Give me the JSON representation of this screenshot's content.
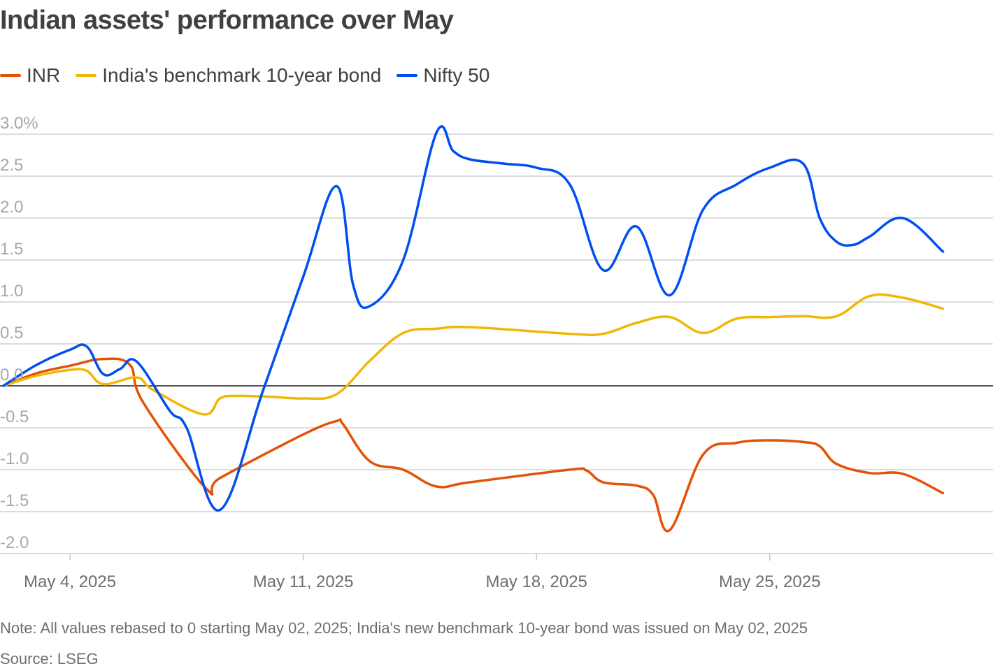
{
  "title": "Indian assets' performance over May",
  "note": "Note: All values rebased to 0 starting May 02, 2025; India's new benchmark 10-year bond was issued on May 02, 2025",
  "source": "Source: LSEG",
  "chart_data": {
    "type": "line",
    "title": "Indian assets' performance over May",
    "xlabel": "",
    "ylabel": "",
    "x_start": "2025-05-02",
    "x_range_days": [
      -0.1,
      29.7
    ],
    "ylim": [
      -2.0,
      3.0
    ],
    "grid": true,
    "legend_position": "top-left",
    "yticks": [
      {
        "value": 3.0,
        "label": "3.0%"
      },
      {
        "value": 2.5,
        "label": "2.5"
      },
      {
        "value": 2.0,
        "label": "2.0"
      },
      {
        "value": 1.5,
        "label": "1.5"
      },
      {
        "value": 1.0,
        "label": "1.0"
      },
      {
        "value": 0.5,
        "label": "0.5"
      },
      {
        "value": 0.0,
        "label": "0.0"
      },
      {
        "value": -0.5,
        "label": "-0.5"
      },
      {
        "value": -1.0,
        "label": "-1.0"
      },
      {
        "value": -1.5,
        "label": "-1.5"
      },
      {
        "value": -2.0,
        "label": "-2.0"
      }
    ],
    "xticks": [
      {
        "day": 2,
        "label": "May 4, 2025"
      },
      {
        "day": 9,
        "label": "May 11, 2025"
      },
      {
        "day": 16,
        "label": "May 18, 2025"
      },
      {
        "day": 23,
        "label": "May 25, 2025"
      }
    ],
    "series": [
      {
        "name": "INR",
        "color": "#e35205",
        "points": [
          [
            0,
            0
          ],
          [
            1,
            0.15
          ],
          [
            2,
            0.24
          ],
          [
            3,
            0.32
          ],
          [
            3.8,
            0.25
          ],
          [
            4.2,
            -0.2
          ],
          [
            6.1,
            -1.23
          ],
          [
            6.5,
            -1.1
          ],
          [
            9,
            -0.58
          ],
          [
            10,
            -0.42
          ],
          [
            10.2,
            -0.46
          ],
          [
            11,
            -0.9
          ],
          [
            12,
            -1.0
          ],
          [
            13,
            -1.2
          ],
          [
            14,
            -1.15
          ],
          [
            17,
            -1.0
          ],
          [
            17.5,
            -1.01
          ],
          [
            18,
            -1.15
          ],
          [
            19,
            -1.19
          ],
          [
            19.5,
            -1.3
          ],
          [
            20,
            -1.72
          ],
          [
            21,
            -0.82
          ],
          [
            22,
            -0.68
          ],
          [
            23,
            -0.65
          ],
          [
            24,
            -0.67
          ],
          [
            24.5,
            -0.72
          ],
          [
            25,
            -0.93
          ],
          [
            26,
            -1.04
          ],
          [
            27,
            -1.05
          ],
          [
            28.2,
            -1.28
          ]
        ]
      },
      {
        "name": "India's benchmark 10-year bond",
        "color": "#f2b705",
        "points": [
          [
            0,
            0
          ],
          [
            1,
            0.12
          ],
          [
            2,
            0.19
          ],
          [
            2.5,
            0.18
          ],
          [
            3,
            0.02
          ],
          [
            4,
            0.1
          ],
          [
            4.5,
            -0.05
          ],
          [
            6,
            -0.34
          ],
          [
            6.5,
            -0.15
          ],
          [
            7,
            -0.12
          ],
          [
            8,
            -0.13
          ],
          [
            9,
            -0.15
          ],
          [
            10,
            -0.1
          ],
          [
            11,
            0.3
          ],
          [
            12,
            0.63
          ],
          [
            13,
            0.68
          ],
          [
            14,
            0.7
          ],
          [
            17,
            0.62
          ],
          [
            18,
            0.62
          ],
          [
            19,
            0.75
          ],
          [
            20,
            0.82
          ],
          [
            21,
            0.63
          ],
          [
            22,
            0.8
          ],
          [
            23,
            0.82
          ],
          [
            24,
            0.83
          ],
          [
            25,
            0.83
          ],
          [
            26,
            1.07
          ],
          [
            27,
            1.05
          ],
          [
            28.2,
            0.92
          ]
        ]
      },
      {
        "name": "Nifty 50",
        "color": "#004ef2",
        "points": [
          [
            0,
            0
          ],
          [
            1,
            0.25
          ],
          [
            2,
            0.43
          ],
          [
            2.5,
            0.47
          ],
          [
            3,
            0.14
          ],
          [
            3.5,
            0.2
          ],
          [
            4,
            0.29
          ],
          [
            5,
            -0.3
          ],
          [
            5.5,
            -0.5
          ],
          [
            6.5,
            -1.48
          ],
          [
            7.8,
            -0.05
          ],
          [
            9,
            1.3
          ],
          [
            10,
            2.38
          ],
          [
            10.5,
            1.2
          ],
          [
            11,
            0.95
          ],
          [
            12,
            1.5
          ],
          [
            13,
            3.02
          ],
          [
            13.5,
            2.8
          ],
          [
            14,
            2.7
          ],
          [
            15,
            2.65
          ],
          [
            16,
            2.6
          ],
          [
            17,
            2.4
          ],
          [
            18,
            1.38
          ],
          [
            19,
            1.9
          ],
          [
            20,
            1.08
          ],
          [
            21,
            2.1
          ],
          [
            22,
            2.4
          ],
          [
            23,
            2.6
          ],
          [
            24,
            2.65
          ],
          [
            24.5,
            2.0
          ],
          [
            25,
            1.72
          ],
          [
            25.5,
            1.68
          ],
          [
            26,
            1.78
          ],
          [
            27,
            2.0
          ],
          [
            28.2,
            1.6
          ]
        ]
      }
    ]
  }
}
